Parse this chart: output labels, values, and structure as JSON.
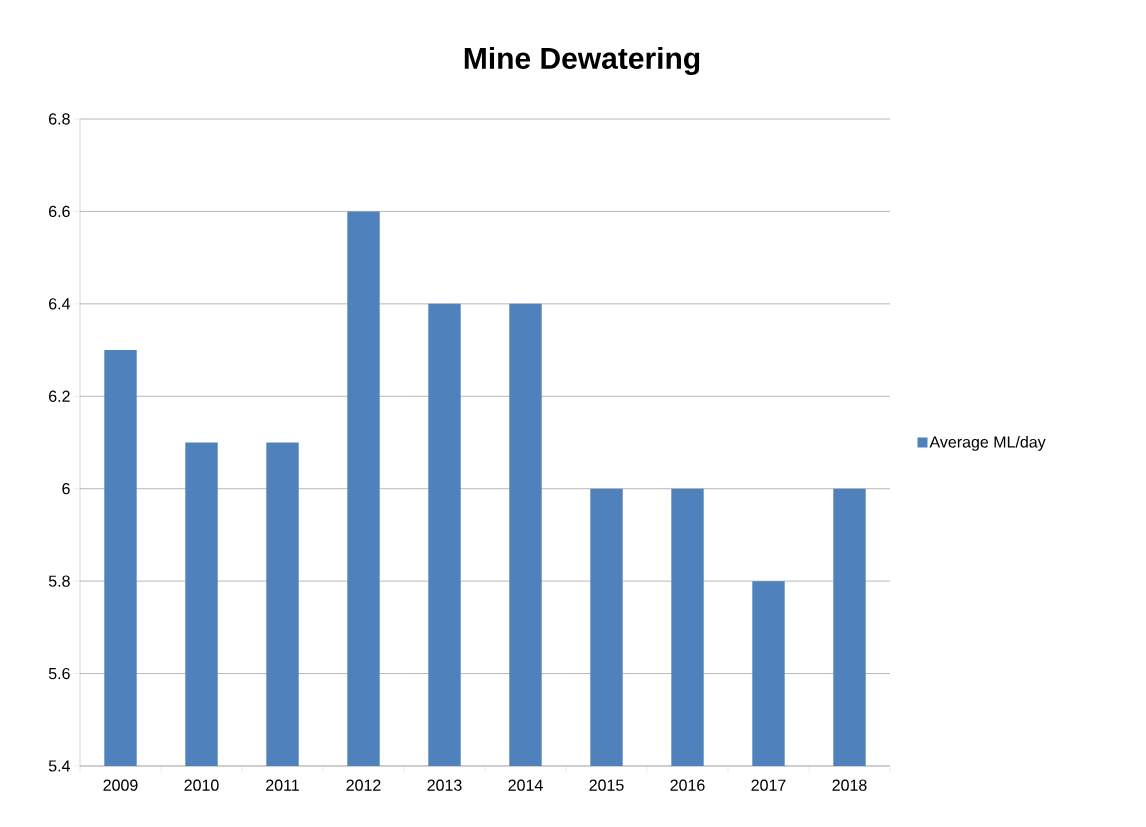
{
  "chart_data": {
    "type": "bar",
    "title": "Mine Dewatering",
    "categories": [
      "2009",
      "2010",
      "2011",
      "2012",
      "2013",
      "2014",
      "2015",
      "2016",
      "2017",
      "2018"
    ],
    "series": [
      {
        "name": "Average ML/day",
        "color": "#4f81bd",
        "values": [
          6.3,
          6.1,
          6.1,
          6.6,
          6.4,
          6.4,
          6.0,
          6.0,
          5.8,
          6.0
        ]
      }
    ],
    "ylim": [
      5.4,
      6.8
    ],
    "yticks": [
      5.4,
      5.6,
      5.8,
      6,
      6.2,
      6.4,
      6.6,
      6.8
    ],
    "grid": "y",
    "legend": "right"
  }
}
